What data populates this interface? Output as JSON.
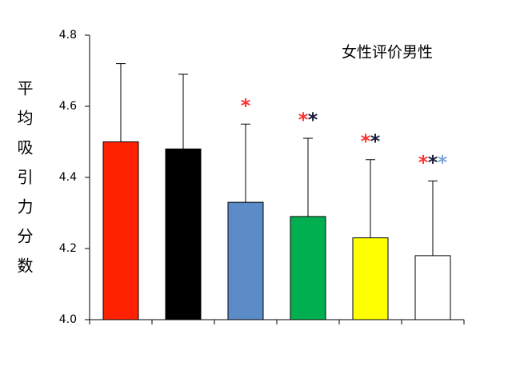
{
  "chart_data": {
    "type": "bar",
    "annotation": "女性评价男性",
    "y_label": "平均吸引力分数",
    "categories": [
      null,
      null,
      null,
      null,
      null,
      null
    ],
    "values": [
      4.5,
      4.48,
      4.33,
      4.29,
      4.23,
      4.18
    ],
    "errors": [
      0.22,
      0.21,
      0.22,
      0.22,
      0.22,
      0.21
    ],
    "colors": [
      "#ff2200",
      "#000000",
      "#5b8cc8",
      "#00b050",
      "#ffff00",
      "#ffffff"
    ],
    "stars": [
      [],
      [],
      [
        {
          "text": "*",
          "color": "#ff3333"
        }
      ],
      [
        {
          "text": "*",
          "color": "#ff3333"
        },
        {
          "text": "*",
          "color": "#1a1a3a"
        }
      ],
      [
        {
          "text": "*",
          "color": "#ff3333"
        },
        {
          "text": "*",
          "color": "#1a1a3a"
        }
      ],
      [
        {
          "text": "*",
          "color": "#ff3333"
        },
        {
          "text": "*",
          "color": "#1a1a3a"
        },
        {
          "text": "*",
          "color": "#7aa6d6"
        }
      ]
    ],
    "ylim": [
      4.0,
      4.8
    ],
    "yticks": [
      {
        "value": 4,
        "label": "4.0"
      },
      4.2,
      4.4,
      4.6,
      4.8
    ]
  }
}
